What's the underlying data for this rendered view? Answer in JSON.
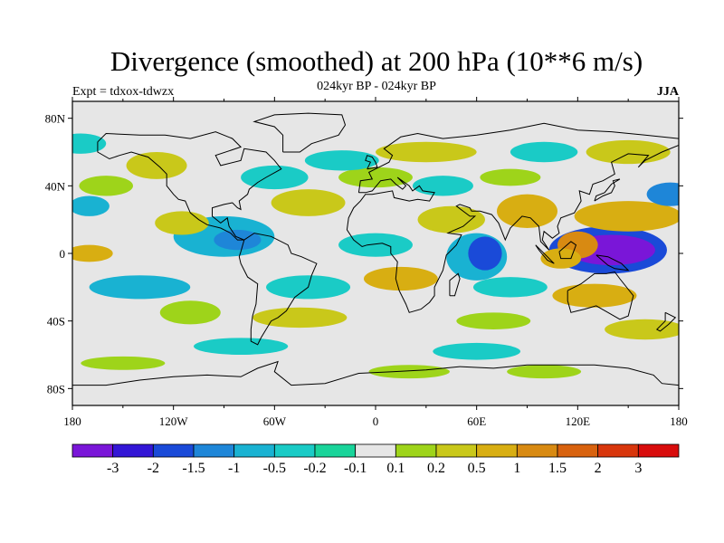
{
  "title": "Divergence (smoothed) at 200 hPa (10**6 m/s)",
  "subtitle": "024kyr BP - 024kyr BP",
  "experiment": "Expt = tdxox-tdwzx",
  "season": "JJA",
  "map": {
    "lon_range": [
      -180,
      180
    ],
    "lat_range": [
      -90,
      90
    ],
    "x_tick_labels": [
      {
        "lon": -180,
        "label": "180"
      },
      {
        "lon": -120,
        "label": "120W"
      },
      {
        "lon": -60,
        "label": "60W"
      },
      {
        "lon": 0,
        "label": "0"
      },
      {
        "lon": 60,
        "label": "60E"
      },
      {
        "lon": 120,
        "label": "120E"
      },
      {
        "lon": 180,
        "label": "180"
      }
    ],
    "y_tick_labels": [
      {
        "lat": 80,
        "label": "80N"
      },
      {
        "lat": 40,
        "label": "40N"
      },
      {
        "lat": 0,
        "label": "0"
      },
      {
        "lat": -40,
        "label": "40S"
      },
      {
        "lat": -80,
        "label": "80S"
      }
    ],
    "background_color": "#e6e6e6",
    "coastline_color": "#000000"
  },
  "colorbar": {
    "colors": [
      "#7a16d8",
      "#3316d6",
      "#1a4ad8",
      "#1e86d8",
      "#19b2d2",
      "#1acbc6",
      "#19d49a",
      "#e6e6e6",
      "#9ed41a",
      "#c9c81a",
      "#d8ae12",
      "#d88a12",
      "#d8620e",
      "#d8360c",
      "#d80c0c"
    ],
    "labels": [
      "-3",
      "-2",
      "-1.5",
      "-1",
      "-0.5",
      "-0.2",
      "-0.1",
      "0.1",
      "0.2",
      "0.5",
      "1",
      "1.5",
      "2",
      "3"
    ]
  },
  "field_blobs": [
    {
      "lon": 140,
      "lat": 2,
      "rx": 26,
      "ry": 9,
      "level": -3
    },
    {
      "lon": 138,
      "lat": 2,
      "rx": 35,
      "ry": 14,
      "level": -1.5
    },
    {
      "lon": 65,
      "lat": 0,
      "rx": 10,
      "ry": 10,
      "level": -1.5
    },
    {
      "lon": 60,
      "lat": -2,
      "rx": 18,
      "ry": 14,
      "level": -0.5
    },
    {
      "lon": -82,
      "lat": 8,
      "rx": 14,
      "ry": 6,
      "level": -1
    },
    {
      "lon": -90,
      "lat": 10,
      "rx": 30,
      "ry": 12,
      "level": -0.5
    },
    {
      "lon": 120,
      "lat": 5,
      "rx": 12,
      "ry": 8,
      "level": 1.5
    },
    {
      "lon": 110,
      "lat": -3,
      "rx": 12,
      "ry": 6,
      "level": 1
    },
    {
      "lon": 150,
      "lat": 22,
      "rx": 32,
      "ry": 9,
      "level": 1
    },
    {
      "lon": 90,
      "lat": 25,
      "rx": 18,
      "ry": 10,
      "level": 1
    },
    {
      "lon": 15,
      "lat": -15,
      "rx": 22,
      "ry": 7,
      "level": 1
    },
    {
      "lon": -170,
      "lat": 0,
      "rx": 14,
      "ry": 5,
      "level": 1
    },
    {
      "lon": 130,
      "lat": -25,
      "rx": 25,
      "ry": 7,
      "level": 1
    },
    {
      "lon": 45,
      "lat": 20,
      "rx": 20,
      "ry": 8,
      "level": 0.5
    },
    {
      "lon": -115,
      "lat": 18,
      "rx": 16,
      "ry": 7,
      "level": 0.5
    },
    {
      "lon": -40,
      "lat": 30,
      "rx": 22,
      "ry": 8,
      "level": 0.5
    },
    {
      "lon": 30,
      "lat": 60,
      "rx": 30,
      "ry": 6,
      "level": 0.5
    },
    {
      "lon": -130,
      "lat": 52,
      "rx": 18,
      "ry": 8,
      "level": 0.5
    },
    {
      "lon": 0,
      "lat": 45,
      "rx": 22,
      "ry": 6,
      "level": 0.2
    },
    {
      "lon": -160,
      "lat": 40,
      "rx": 16,
      "ry": 6,
      "level": 0.2
    },
    {
      "lon": -45,
      "lat": -38,
      "rx": 28,
      "ry": 6,
      "level": 0.5
    },
    {
      "lon": -110,
      "lat": -35,
      "rx": 18,
      "ry": 7,
      "level": 0.2
    },
    {
      "lon": 70,
      "lat": -40,
      "rx": 22,
      "ry": 5,
      "level": 0.2
    },
    {
      "lon": 160,
      "lat": -45,
      "rx": 24,
      "ry": 6,
      "level": 0.5
    },
    {
      "lon": 20,
      "lat": -70,
      "rx": 24,
      "ry": 4,
      "level": 0.2
    },
    {
      "lon": -150,
      "lat": -65,
      "rx": 25,
      "ry": 4,
      "level": 0.2
    },
    {
      "lon": 100,
      "lat": -70,
      "rx": 22,
      "ry": 4,
      "level": 0.2
    },
    {
      "lon": 150,
      "lat": 60,
      "rx": 25,
      "ry": 7,
      "level": 0.5
    },
    {
      "lon": 80,
      "lat": 45,
      "rx": 18,
      "ry": 5,
      "level": 0.2
    },
    {
      "lon": -170,
      "lat": 28,
      "rx": 12,
      "ry": 6,
      "level": -0.5
    },
    {
      "lon": 175,
      "lat": 35,
      "rx": 14,
      "ry": 7,
      "level": -1
    },
    {
      "lon": -60,
      "lat": 45,
      "rx": 20,
      "ry": 7,
      "level": -0.2
    },
    {
      "lon": -20,
      "lat": 55,
      "rx": 22,
      "ry": 6,
      "level": -0.2
    },
    {
      "lon": 40,
      "lat": 40,
      "rx": 18,
      "ry": 6,
      "level": -0.2
    },
    {
      "lon": 100,
      "lat": 60,
      "rx": 20,
      "ry": 6,
      "level": -0.2
    },
    {
      "lon": -140,
      "lat": -20,
      "rx": 30,
      "ry": 7,
      "level": -0.5
    },
    {
      "lon": -40,
      "lat": -20,
      "rx": 25,
      "ry": 7,
      "level": -0.2
    },
    {
      "lon": 80,
      "lat": -20,
      "rx": 22,
      "ry": 6,
      "level": -0.2
    },
    {
      "lon": -80,
      "lat": -55,
      "rx": 28,
      "ry": 5,
      "level": -0.2
    },
    {
      "lon": 60,
      "lat": -58,
      "rx": 26,
      "ry": 5,
      "level": -0.2
    },
    {
      "lon": 0,
      "lat": 5,
      "rx": 22,
      "ry": 7,
      "level": -0.2
    },
    {
      "lon": -175,
      "lat": 65,
      "rx": 15,
      "ry": 6,
      "level": -0.2
    }
  ]
}
